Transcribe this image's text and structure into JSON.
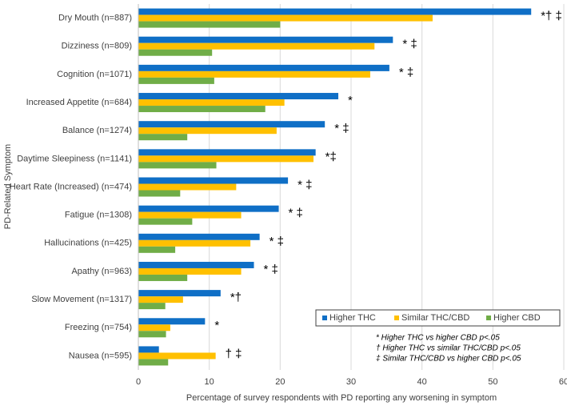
{
  "chart_data": {
    "type": "hbar",
    "x_label": "Percentage of survey respondents with PD reporting any worsening in symptom",
    "y_label": "PD-Related Symptom",
    "categories": [
      "Dry Mouth (n=887)",
      "Dizziness (n=809)",
      "Cognition (n=1071)",
      "Increased Appetite (n=684)",
      "Balance (n=1274)",
      "Daytime Sleepiness (n=1141)",
      "Heart Rate (Increased) (n=474)",
      "Fatigue (n=1308)",
      "Hallucinations (n=425)",
      "Apathy (n=963)",
      "Slow Movement (n=1317)",
      "Freezing (n=754)",
      "Nausea (n=595)"
    ],
    "series": [
      {
        "name": "Higher THC",
        "color": "#0f6fc6",
        "values": [
          55.4,
          35.9,
          35.4,
          28.2,
          26.3,
          25.0,
          21.1,
          19.8,
          17.1,
          16.3,
          11.6,
          9.4,
          2.9
        ]
      },
      {
        "name": "Similar THC/CBD",
        "color": "#ffc000",
        "values": [
          41.5,
          33.3,
          32.7,
          20.6,
          19.5,
          24.7,
          13.8,
          14.5,
          15.8,
          14.5,
          6.3,
          4.5,
          10.9
        ]
      },
      {
        "name": "Higher CBD",
        "color": "#70ad47",
        "values": [
          20.0,
          10.4,
          10.7,
          17.9,
          6.9,
          11.0,
          5.9,
          7.6,
          5.2,
          6.9,
          3.8,
          3.9,
          4.2
        ]
      }
    ],
    "significance": [
      "*† ‡",
      "* ‡",
      "* ‡",
      "*",
      "* ‡",
      "*‡",
      "* ‡",
      "* ‡",
      "* ‡",
      "* ‡",
      "*†",
      "*",
      "† ‡"
    ],
    "footnotes": [
      "* Higher THC vs higher CBD p<.05",
      "† Higher THC vs similar THC/CBD p<.05",
      "‡ Similar THC/CBD vs higher CBD p<.05"
    ],
    "xlim": [
      0,
      60
    ],
    "xticks": [
      0,
      10,
      20,
      30,
      40,
      50,
      60
    ],
    "grid": true,
    "legend": "lower right"
  }
}
